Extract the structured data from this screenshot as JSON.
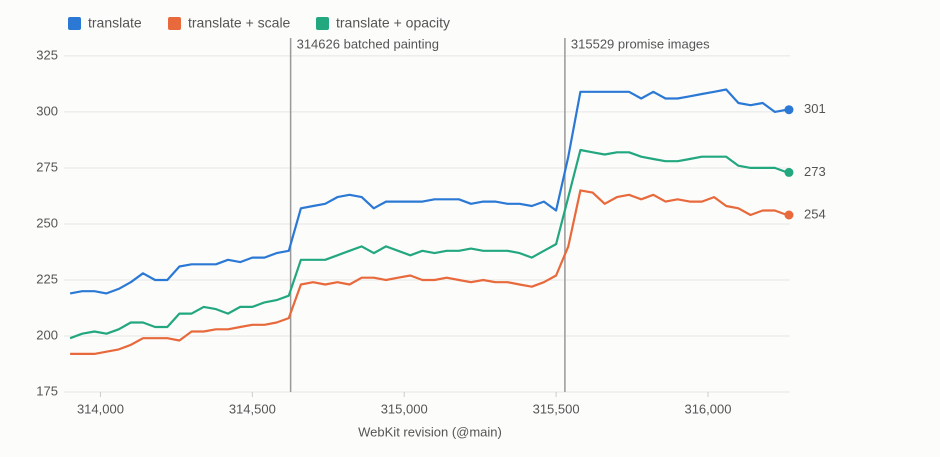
{
  "chart_data": {
    "type": "line",
    "x_label": "WebKit revision (@main)",
    "x": [
      313900,
      313940,
      313980,
      314020,
      314060,
      314100,
      314140,
      314180,
      314220,
      314260,
      314300,
      314340,
      314380,
      314420,
      314460,
      314500,
      314540,
      314580,
      314620,
      314660,
      314700,
      314740,
      314780,
      314820,
      314860,
      314900,
      314940,
      314980,
      315020,
      315060,
      315100,
      315140,
      315180,
      315220,
      315260,
      315300,
      315340,
      315380,
      315420,
      315460,
      315500,
      315540,
      315580,
      315620,
      315660,
      315700,
      315740,
      315780,
      315820,
      315860,
      315900,
      315940,
      315980,
      316020,
      316060,
      316100,
      316140,
      316180,
      316220,
      316260
    ],
    "series": [
      {
        "name": "translate",
        "color": "#2b79d4",
        "values": [
          219,
          220,
          220,
          219,
          221,
          224,
          228,
          225,
          225,
          231,
          232,
          232,
          232,
          234,
          233,
          235,
          235,
          237,
          238,
          257,
          258,
          259,
          262,
          263,
          262,
          257,
          260,
          260,
          260,
          260,
          261,
          261,
          261,
          259,
          260,
          260,
          259,
          259,
          258,
          260,
          256,
          280,
          309,
          309,
          309,
          309,
          309,
          306,
          309,
          306,
          306,
          307,
          308,
          309,
          310,
          304,
          303,
          304,
          300,
          301
        ]
      },
      {
        "name": "translate + scale",
        "color": "#e8693b",
        "values": [
          192,
          192,
          192,
          193,
          194,
          196,
          199,
          199,
          199,
          198,
          202,
          202,
          203,
          203,
          204,
          205,
          205,
          206,
          208,
          223,
          224,
          223,
          224,
          223,
          226,
          226,
          225,
          226,
          227,
          225,
          225,
          226,
          225,
          224,
          225,
          224,
          224,
          223,
          222,
          224,
          227,
          240,
          265,
          264,
          259,
          262,
          263,
          261,
          263,
          260,
          261,
          260,
          260,
          262,
          258,
          257,
          254,
          256,
          256,
          254
        ]
      },
      {
        "name": "translate + opacity",
        "color": "#22a77f",
        "values": [
          199,
          201,
          202,
          201,
          203,
          206,
          206,
          204,
          204,
          210,
          210,
          213,
          212,
          210,
          213,
          213,
          215,
          216,
          218,
          234,
          234,
          234,
          236,
          238,
          240,
          237,
          240,
          238,
          236,
          238,
          237,
          238,
          238,
          239,
          238,
          238,
          238,
          237,
          235,
          238,
          241,
          262,
          283,
          282,
          281,
          282,
          282,
          280,
          279,
          278,
          278,
          279,
          280,
          280,
          280,
          276,
          275,
          275,
          275,
          273
        ]
      }
    ],
    "annotations": [
      {
        "x": 314626,
        "label": "314626 batched painting"
      },
      {
        "x": 315529,
        "label": "315529 promise images"
      }
    ],
    "xlim": [
      313880,
      316270
    ],
    "ylim": [
      175,
      333
    ],
    "xticks": [
      {
        "value": 314000,
        "label": "314,000"
      },
      {
        "value": 314500,
        "label": "314,500"
      },
      {
        "value": 315000,
        "label": "315,000"
      },
      {
        "value": 315500,
        "label": "315,500"
      },
      {
        "value": 316000,
        "label": "316,000"
      }
    ],
    "yticks": [
      175,
      200,
      225,
      250,
      275,
      300,
      325
    ],
    "grid": true
  }
}
